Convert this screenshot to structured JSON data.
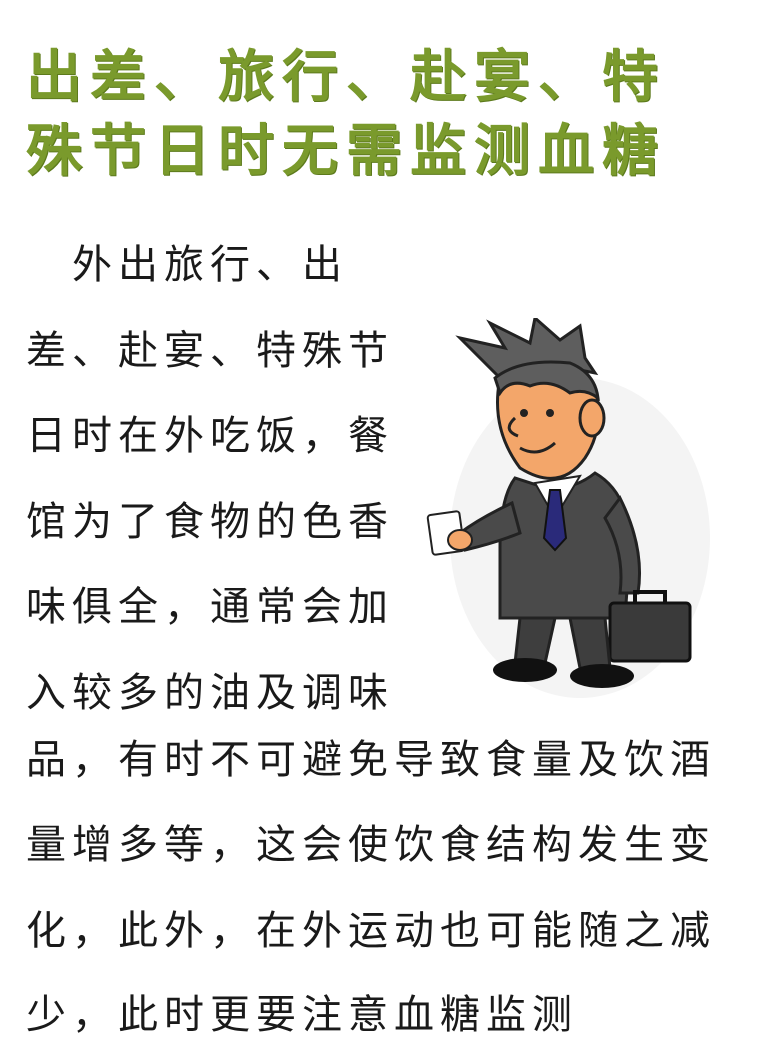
{
  "title": {
    "line1": "出差、旅行、赴宴、特",
    "line2": "殊节日时无需监测血糖"
  },
  "paragraph": {
    "lines": [
      "　外出旅行、出",
      "差、赴宴、特殊节",
      "日时在外吃饭，餐",
      "馆为了食物的色香",
      "味俱全，通常会加",
      "入较多的油及调味",
      "品，有时不可避免导致食量及饮酒",
      "量增多等，这会使饮食结构发生变",
      "化，此外，在外运动也可能随之减",
      "少，此时更要注意血糖监测"
    ]
  },
  "illustration": {
    "icon": "businessman-with-briefcase-illustration",
    "colors": {
      "suit": "#4a4a4a",
      "skin": "#f0a46c",
      "tie": "#2a2a7a",
      "hair": "#5a5a5a"
    }
  }
}
